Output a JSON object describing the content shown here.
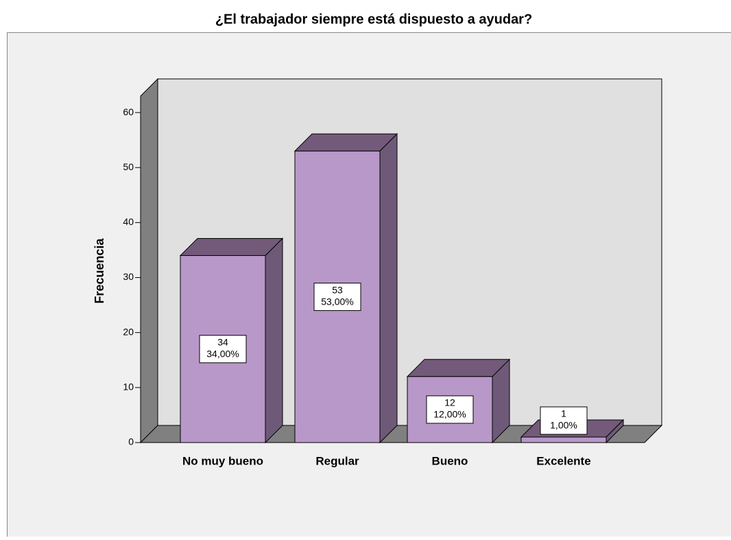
{
  "chart_data": {
    "type": "bar3d",
    "title": "¿El trabajador siempre está dispuesto a ayudar?",
    "y_label": "Frecuencia",
    "categories": [
      "No muy bueno",
      "Regular",
      "Bueno",
      "Excelente"
    ],
    "values": [
      34,
      53,
      12,
      1
    ],
    "percent_labels": [
      "34,00%",
      "53,00%",
      "12,00%",
      "1,00%"
    ],
    "color": "#b898c8",
    "ylim": [
      0,
      63
    ],
    "yticks": [
      0,
      10,
      20,
      30,
      40,
      50,
      60
    ]
  }
}
